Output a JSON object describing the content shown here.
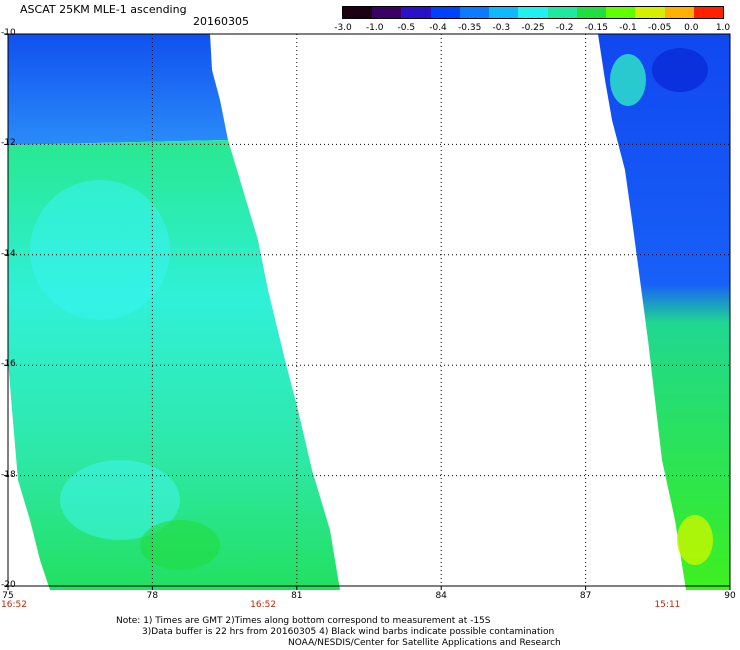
{
  "header": {
    "title": "ASCAT 25KM MLE-1 ascending",
    "date": "20160305"
  },
  "colorbar": {
    "labels": [
      "-3.0",
      "-1.0",
      "-0.5",
      "-0.4",
      "-0.35",
      "-0.3",
      "-0.25",
      "-0.2",
      "-0.15",
      "-0.1",
      "-0.05",
      "0.0",
      "1.0"
    ],
    "colors": [
      "#1a0012",
      "#3a0066",
      "#2a10c8",
      "#0040ff",
      "#0a7cff",
      "#12b8ff",
      "#20f0ee",
      "#20e8a0",
      "#20e040",
      "#60ff00",
      "#d4f000",
      "#ffb000",
      "#ff2000"
    ]
  },
  "map": {
    "lat_labels": [
      "-10",
      "-12",
      "-14",
      "-16",
      "-18",
      "-20"
    ],
    "lon_labels": [
      "75",
      "78",
      "81",
      "84",
      "87",
      "90"
    ],
    "lat_range": [
      -20,
      -10
    ],
    "lon_range": [
      75,
      90
    ],
    "grid": true,
    "times": [
      {
        "label": "16:52",
        "lon": 75.0
      },
      {
        "label": "16:52",
        "lon": 80.3
      },
      {
        "label": "15:11",
        "lon": 88.7
      }
    ]
  },
  "footer": {
    "note1": "Note: 1) Times are GMT 2)Times along bottom correspond to measurement at -15S",
    "note2": "3)Data buffer is 22 hrs from 20160305 4) Black wind barbs indicate possible contamination",
    "credit": "NOAA/NESDIS/Center for Satellite Applications and Research"
  }
}
